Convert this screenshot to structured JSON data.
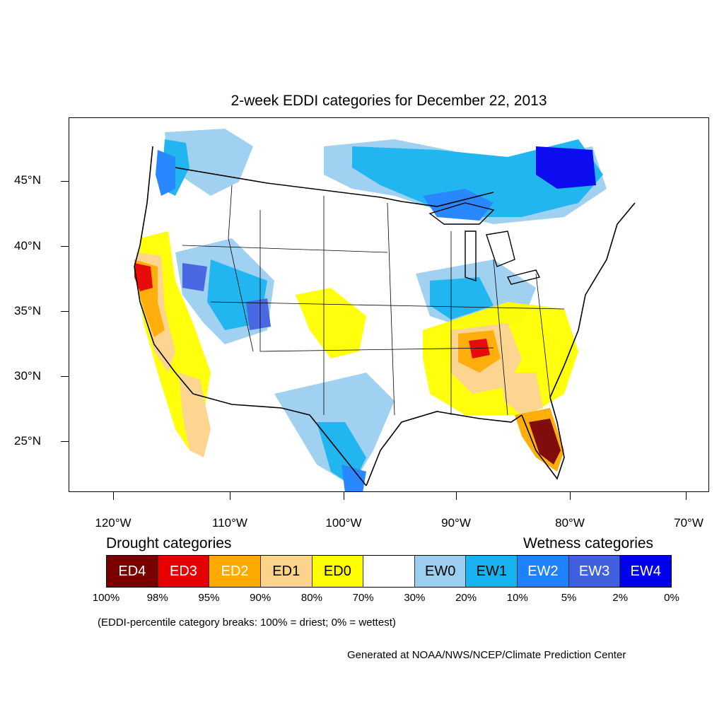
{
  "title": "2-week EDDI categories for December 22, 2013",
  "lat_labels": [
    "45°N",
    "40°N",
    "35°N",
    "30°N",
    "25°N"
  ],
  "lon_labels": [
    "120°W",
    "110°W",
    "100°W",
    "90°W",
    "80°W",
    "70°W"
  ],
  "legend": {
    "drought_heading": "Drought categories",
    "wetness_heading": "Wetness categories",
    "categories": [
      {
        "label": "ED4",
        "color": "#7a0000",
        "text_color": "#ffffff"
      },
      {
        "label": "ED3",
        "color": "#e60000",
        "text_color": "#ffffff"
      },
      {
        "label": "ED2",
        "color": "#ffaa00",
        "text_color": "#ffffff"
      },
      {
        "label": "ED1",
        "color": "#fcd38b",
        "text_color": "#000000"
      },
      {
        "label": "ED0",
        "color": "#ffff00",
        "text_color": "#000000"
      },
      {
        "label": "",
        "color": "#ffffff",
        "text_color": "#000000"
      },
      {
        "label": "EW0",
        "color": "#9bcff0",
        "text_color": "#000000"
      },
      {
        "label": "EW1",
        "color": "#16b3f0",
        "text_color": "#000000"
      },
      {
        "label": "EW2",
        "color": "#1e82ff",
        "text_color": "#ffffff"
      },
      {
        "label": "EW3",
        "color": "#4060e0",
        "text_color": "#ffffff"
      },
      {
        "label": "EW4",
        "color": "#0000ee",
        "text_color": "#ffffff"
      }
    ],
    "breaks": [
      "100%",
      "98%",
      "95%",
      "90%",
      "80%",
      "70%",
      "30%",
      "20%",
      "10%",
      "5%",
      "2%",
      "0%"
    ]
  },
  "footnote": "(EDDI-percentile category breaks: 100% = driest; 0% = wettest)",
  "credit": "Generated at NOAA/NWS/NCEP/Climate Prediction Center"
}
